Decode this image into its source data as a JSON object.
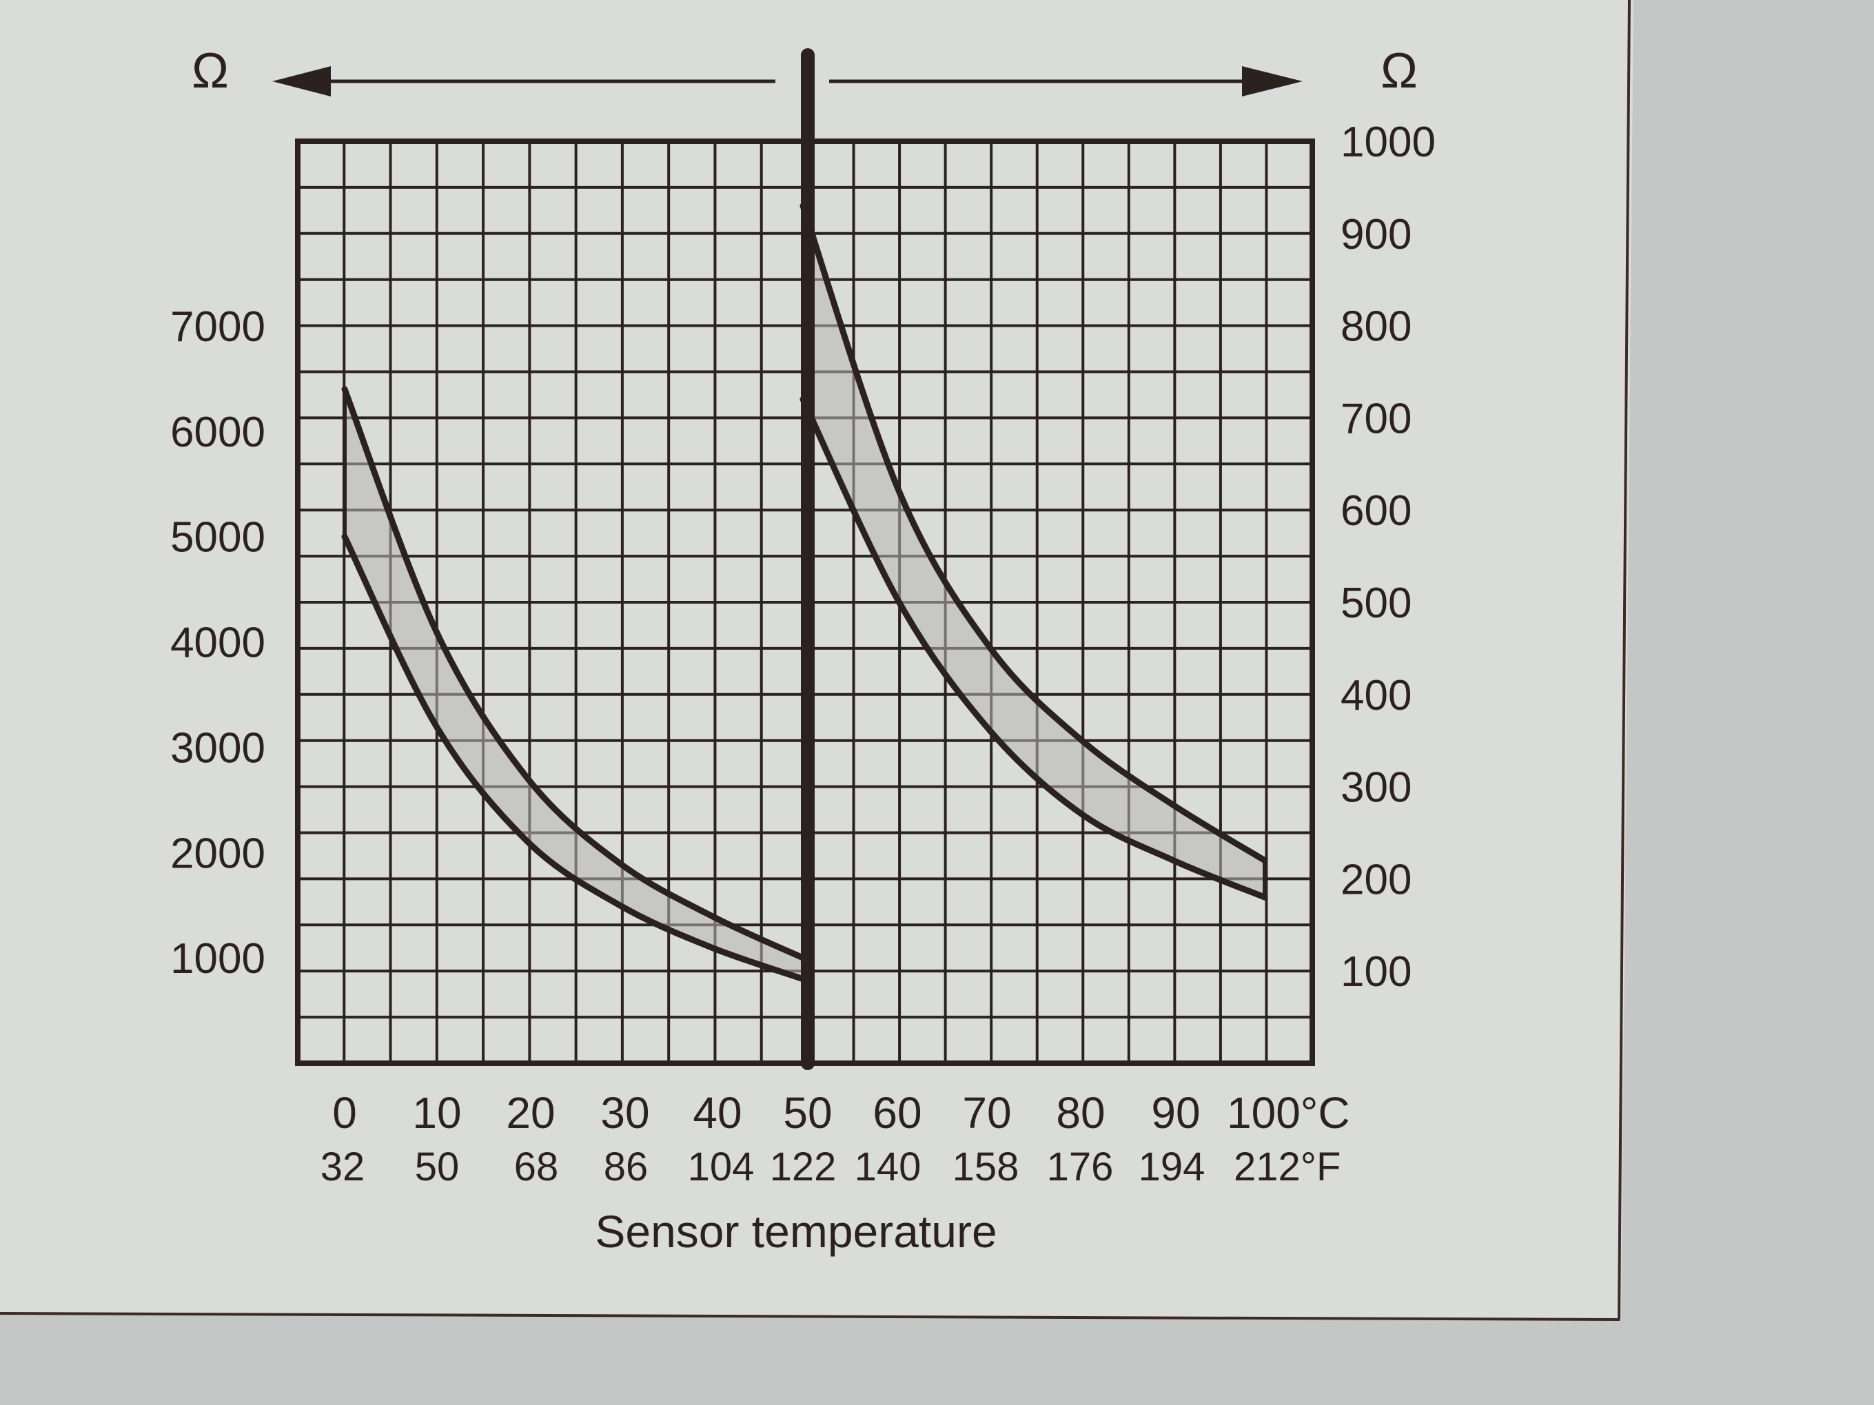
{
  "chart_data": {
    "type": "line",
    "title": "",
    "xlabel": "Sensor temperature",
    "x_unit_primary": "°C",
    "x_unit_secondary": "°F",
    "x_ticks_c": [
      "0",
      "10",
      "20",
      "30",
      "40",
      "50",
      "60",
      "70",
      "80",
      "90",
      "100"
    ],
    "x_ticks_f": [
      "32",
      "50",
      "68",
      "86",
      "104",
      "122",
      "140",
      "158",
      "176",
      "194",
      "212"
    ],
    "x_last_c_label": "100°C",
    "x_last_f_label": "212°F",
    "xlim": [
      0,
      100
    ],
    "left_axis": {
      "unit_label": "Ω",
      "range": [
        0,
        10000
      ],
      "tick_labels": [
        "7000",
        "6000",
        "5000",
        "4000",
        "3000",
        "2000",
        "1000"
      ],
      "tick_values": [
        7000,
        6000,
        5000,
        4000,
        3000,
        2000,
        1000
      ]
    },
    "right_axis": {
      "unit_label": "Ω",
      "range": [
        0,
        1000
      ],
      "tick_labels": [
        "1000",
        "900",
        "800",
        "700",
        "600",
        "500",
        "400",
        "300",
        "200",
        "100"
      ],
      "tick_values": [
        1000,
        900,
        800,
        700,
        600,
        500,
        400,
        300,
        200,
        100
      ]
    },
    "grid": true,
    "series": [
      {
        "axis": "left",
        "bound": "upper",
        "x": [
          0,
          10,
          20,
          30,
          40,
          50
        ],
        "y": [
          6400,
          4100,
          2700,
          1900,
          1400,
          1000
        ]
      },
      {
        "axis": "left",
        "bound": "lower",
        "x": [
          0,
          10,
          20,
          30,
          40,
          50
        ],
        "y": [
          5000,
          3200,
          2100,
          1500,
          1100,
          800
        ]
      },
      {
        "axis": "right",
        "bound": "upper",
        "x": [
          50,
          60,
          70,
          80,
          90,
          100
        ],
        "y": [
          930,
          620,
          450,
          350,
          280,
          220
        ]
      },
      {
        "axis": "right",
        "bound": "lower",
        "x": [
          50,
          60,
          70,
          80,
          90,
          100
        ],
        "y": [
          720,
          500,
          360,
          270,
          220,
          180
        ]
      }
    ]
  }
}
